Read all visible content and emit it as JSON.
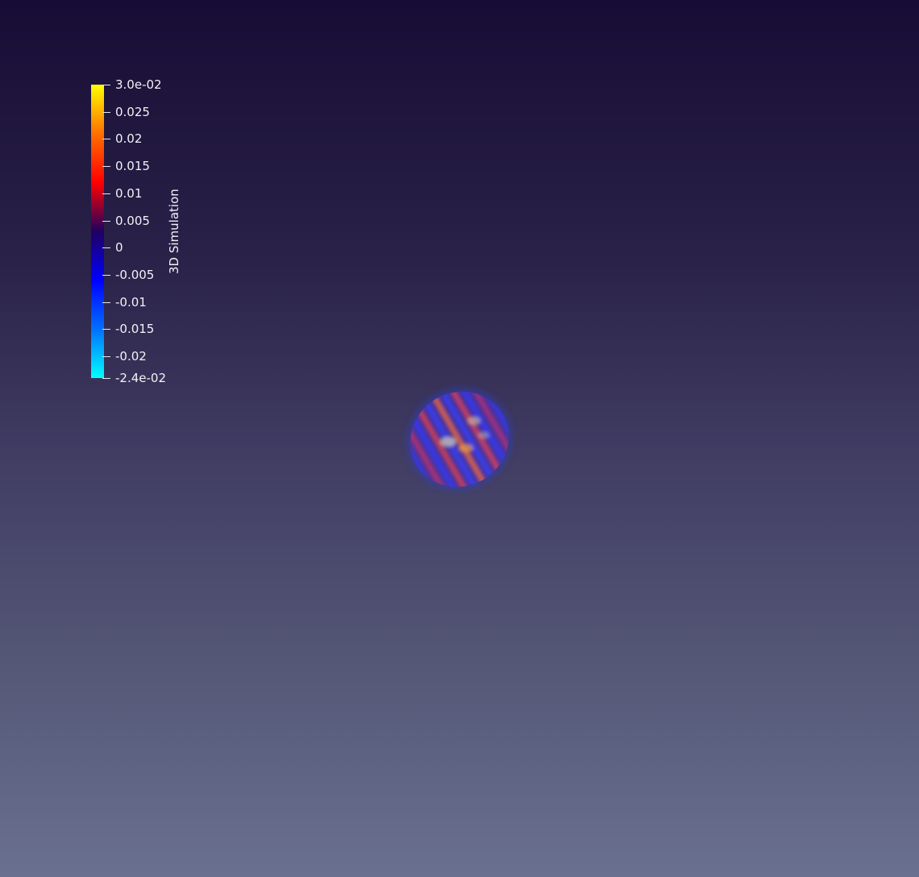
{
  "view": {
    "background_top": "#170c35",
    "background_bottom": "#6a7090"
  },
  "scalar_bar": {
    "title": "3D Simulation",
    "range": [
      -0.024,
      0.03
    ],
    "colormap": [
      "#00ffff",
      "#0070ff",
      "#0000ff",
      "#200060",
      "#ff0000",
      "#ff7000",
      "#ffff00"
    ],
    "labels": [
      {
        "value": 0.03,
        "text": "3.0e-02"
      },
      {
        "value": 0.025,
        "text": "0.025"
      },
      {
        "value": 0.02,
        "text": "0.02"
      },
      {
        "value": 0.015,
        "text": "0.015"
      },
      {
        "value": 0.01,
        "text": "0.01"
      },
      {
        "value": 0.005,
        "text": "0.005"
      },
      {
        "value": 0,
        "text": "0"
      },
      {
        "value": -0.005,
        "text": "-0.005"
      },
      {
        "value": -0.01,
        "text": "-0.01"
      },
      {
        "value": -0.015,
        "text": "-0.015"
      },
      {
        "value": -0.02,
        "text": "-0.02"
      },
      {
        "value": -0.024,
        "text": "-2.4e-02"
      }
    ]
  }
}
